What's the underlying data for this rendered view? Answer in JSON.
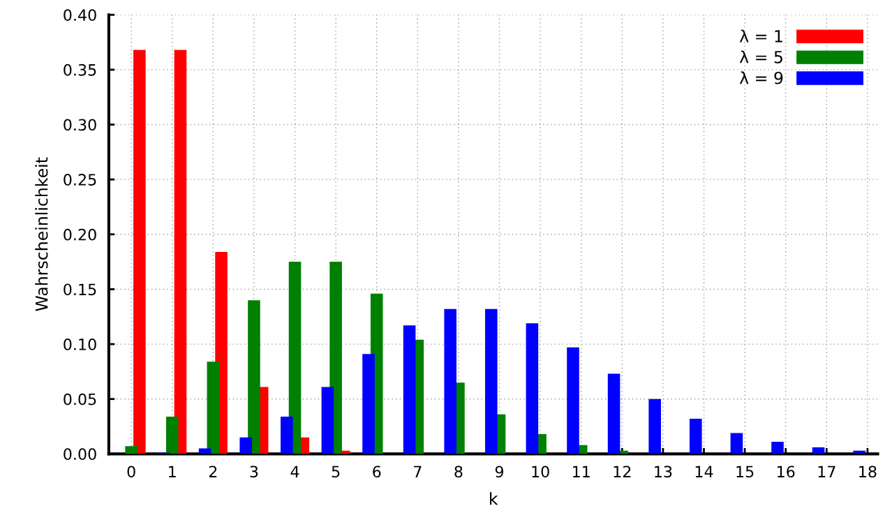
{
  "chart_data": {
    "type": "bar",
    "xlabel": "k",
    "ylabel": "Wahrscheinlichkeit",
    "categories": [
      "0",
      "1",
      "2",
      "3",
      "4",
      "5",
      "6",
      "7",
      "8",
      "9",
      "10",
      "11",
      "12",
      "13",
      "14",
      "15",
      "16",
      "17",
      "18"
    ],
    "series": [
      {
        "name": "λ = 1",
        "color": "#ff0000",
        "values": [
          0.368,
          0.368,
          0.184,
          0.061,
          0.015,
          0.003,
          0.0,
          0.0,
          0.0,
          0.0,
          0.0,
          0.0,
          0.0,
          0.0,
          0.0,
          0.0,
          0.0,
          0.0,
          0.0
        ]
      },
      {
        "name": "λ = 5",
        "color": "#008000",
        "values": [
          0.007,
          0.034,
          0.084,
          0.14,
          0.175,
          0.175,
          0.146,
          0.104,
          0.065,
          0.036,
          0.018,
          0.008,
          0.003,
          null,
          0.0,
          0.0,
          0.0,
          0.0,
          0.0
        ]
      },
      {
        "name": "λ = 9",
        "color": "#0000ff",
        "values": [
          0.0,
          0.001,
          0.005,
          0.015,
          0.034,
          0.061,
          0.091,
          0.117,
          0.132,
          0.132,
          0.119,
          0.097,
          0.073,
          0.05,
          0.032,
          0.019,
          0.011,
          0.006,
          0.003
        ]
      }
    ],
    "ylim": [
      0,
      0.4
    ],
    "yticks": [
      {
        "value": 0,
        "label": "0.00"
      },
      {
        "value": 0.05,
        "label": "0.05"
      },
      {
        "value": 0.1,
        "label": "0.10"
      },
      {
        "value": 0.15,
        "label": "0.15"
      },
      {
        "value": 0.2,
        "label": "0.20"
      },
      {
        "value": 0.25,
        "label": "0.25"
      },
      {
        "value": 0.3,
        "label": "0.30"
      },
      {
        "value": 0.35,
        "label": "0.35"
      },
      {
        "value": 0.4,
        "label": "0.40"
      }
    ],
    "grid": true,
    "legend": "top right"
  }
}
